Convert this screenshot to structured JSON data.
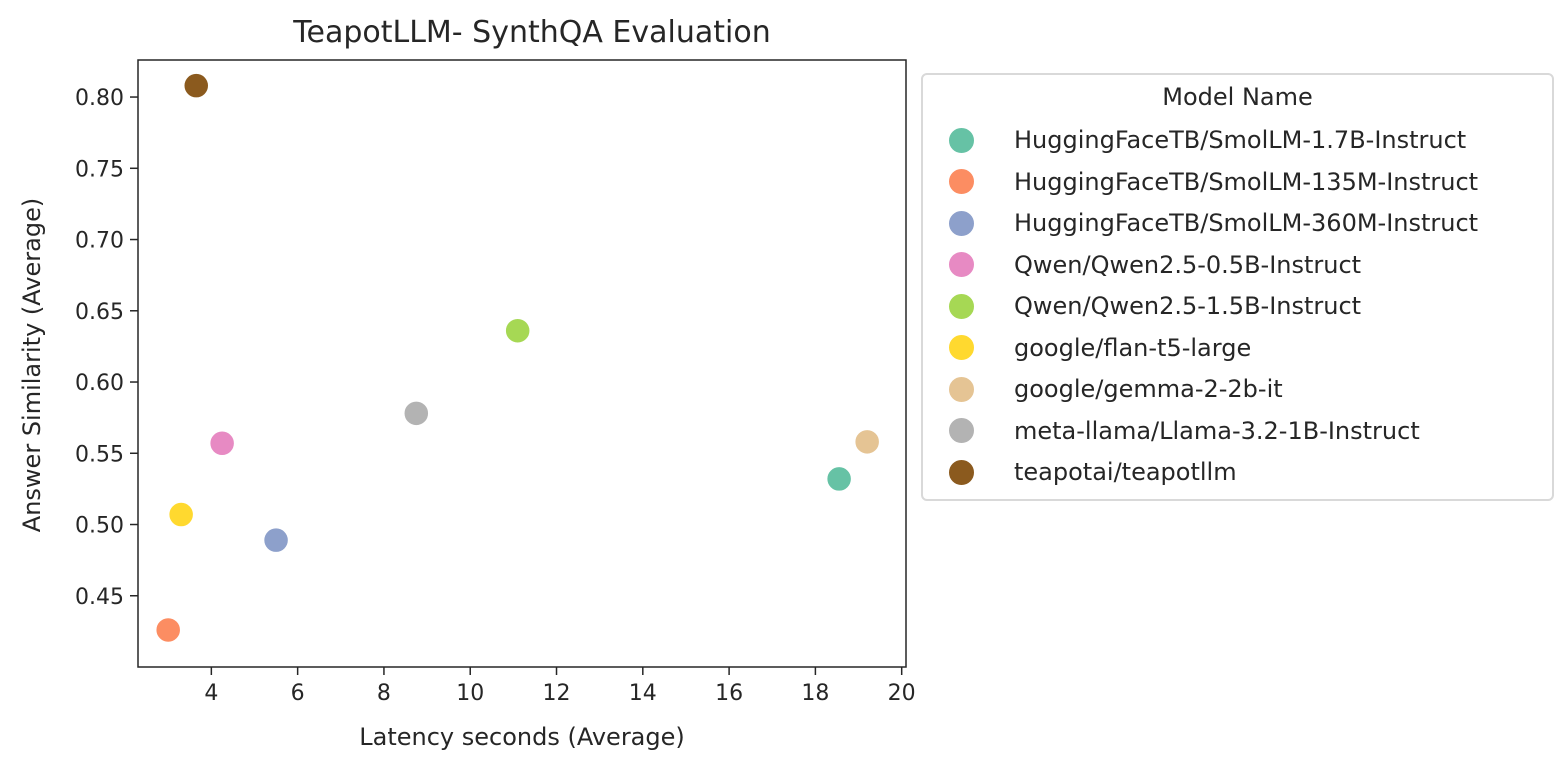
{
  "chart_data": {
    "type": "scatter",
    "title": "TeapotLLM- SynthQA Evaluation",
    "xlabel": "Latency seconds (Average)",
    "ylabel": "Answer Similarity (Average)",
    "xlim": [
      2.3,
      20.1
    ],
    "ylim": [
      0.4,
      0.826
    ],
    "xticks": [
      4,
      6,
      8,
      10,
      12,
      14,
      16,
      18,
      20
    ],
    "yticks": [
      0.45,
      0.5,
      0.55,
      0.6,
      0.65,
      0.7,
      0.75,
      0.8
    ],
    "ytick_labels": [
      "0.45",
      "0.50",
      "0.55",
      "0.60",
      "0.65",
      "0.70",
      "0.75",
      "0.80"
    ],
    "grid": false,
    "legend_title": "Model Name",
    "legend_placement": "outside-right",
    "series": [
      {
        "name": "HuggingFaceTB/SmolLM-1.7B-Instruct",
        "color": "#66c2a5",
        "x": [
          18.55
        ],
        "y": [
          0.532
        ]
      },
      {
        "name": "HuggingFaceTB/SmolLM-135M-Instruct",
        "color": "#fc8d62",
        "x": [
          3.0
        ],
        "y": [
          0.426
        ]
      },
      {
        "name": "HuggingFaceTB/SmolLM-360M-Instruct",
        "color": "#8da0cb",
        "x": [
          5.5
        ],
        "y": [
          0.489
        ]
      },
      {
        "name": "Qwen/Qwen2.5-0.5B-Instruct",
        "color": "#e78ac3",
        "x": [
          4.25
        ],
        "y": [
          0.557
        ]
      },
      {
        "name": "Qwen/Qwen2.5-1.5B-Instruct",
        "color": "#a6d854",
        "x": [
          11.1
        ],
        "y": [
          0.636
        ]
      },
      {
        "name": "google/flan-t5-large",
        "color": "#ffd92f",
        "x": [
          3.3
        ],
        "y": [
          0.507
        ]
      },
      {
        "name": "google/gemma-2-2b-it",
        "color": "#e5c494",
        "x": [
          19.2
        ],
        "y": [
          0.558
        ]
      },
      {
        "name": "meta-llama/Llama-3.2-1B-Instruct",
        "color": "#b3b3b3",
        "x": [
          8.75
        ],
        "y": [
          0.578
        ]
      },
      {
        "name": "teapotai/teapotllm",
        "color": "#8b5a1e",
        "x": [
          3.65
        ],
        "y": [
          0.808
        ]
      }
    ]
  }
}
